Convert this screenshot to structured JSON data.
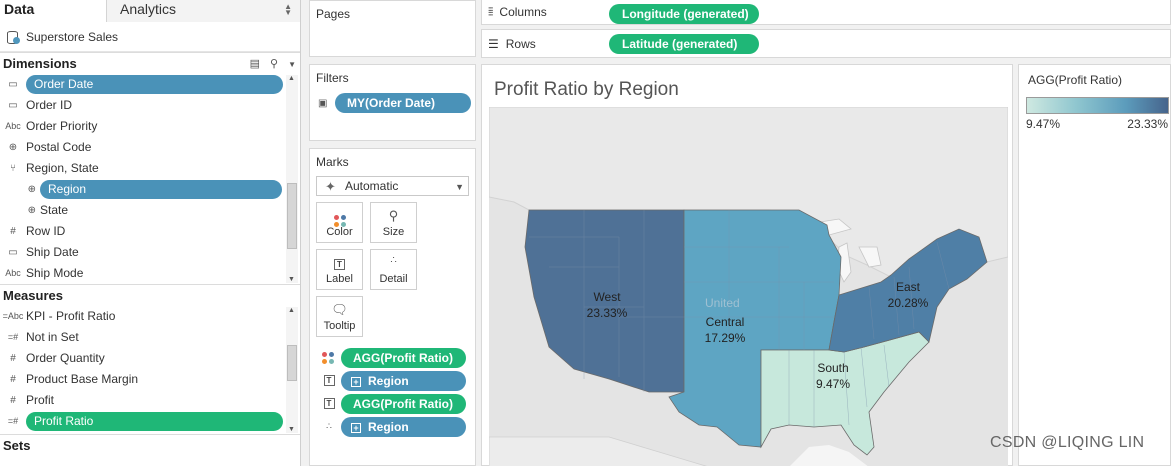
{
  "left_pane": {
    "tabs": {
      "data": "Data",
      "analytics": "Analytics"
    },
    "datasource": "Superstore Sales",
    "dimensions_header": "Dimensions",
    "dimensions": [
      {
        "label": "Order Date",
        "icon": "calendar-icon",
        "selected": true
      },
      {
        "label": "Order ID",
        "icon": "calendar-icon"
      },
      {
        "label": "Order Priority",
        "icon": "abc-icon"
      },
      {
        "label": "Postal Code",
        "icon": "globe-icon"
      },
      {
        "label": "Region, State",
        "icon": "hierarchy-icon"
      },
      {
        "label": "Region",
        "icon": "globe-icon",
        "selected": true,
        "indent": true
      },
      {
        "label": "State",
        "icon": "globe-icon",
        "indent": true
      },
      {
        "label": "Row ID",
        "icon": "hash-icon"
      },
      {
        "label": "Ship Date",
        "icon": "calendar-icon"
      },
      {
        "label": "Ship Mode",
        "icon": "abc-icon"
      }
    ],
    "measures_header": "Measures",
    "measures": [
      {
        "label": "KPI - Profit Ratio",
        "icon": "abc-calc-icon"
      },
      {
        "label": "Not in Set",
        "icon": "hash-calc-icon"
      },
      {
        "label": "Order Quantity",
        "icon": "hash-icon"
      },
      {
        "label": "Product Base Margin",
        "icon": "hash-icon"
      },
      {
        "label": "Profit",
        "icon": "hash-icon"
      },
      {
        "label": "Profit Ratio",
        "icon": "hash-calc-icon",
        "selected": true
      }
    ],
    "sets_header": "Sets"
  },
  "shelves": {
    "pages": "Pages",
    "filters": "Filters",
    "filter_pill": "MY(Order Date)",
    "columns_label": "Columns",
    "columns_pill": "Longitude (generated)",
    "rows_label": "Rows",
    "rows_pill": "Latitude (generated)"
  },
  "marks": {
    "title": "Marks",
    "type": "Automatic",
    "buttons": [
      "Color",
      "Size",
      "Label",
      "Detail",
      "Tooltip"
    ],
    "fields": [
      {
        "label": "AGG(Profit Ratio)",
        "kind": "measure",
        "role": "color"
      },
      {
        "label": "Region",
        "kind": "dimension",
        "role": "label"
      },
      {
        "label": "AGG(Profit Ratio)",
        "kind": "measure",
        "role": "label"
      },
      {
        "label": "Region",
        "kind": "dimension",
        "role": "detail"
      }
    ]
  },
  "view": {
    "title": "Profit Ratio by Region",
    "regions": [
      {
        "name": "West",
        "value": "23.33%",
        "color": "#4f7196"
      },
      {
        "name": "Central",
        "value": "17.29%",
        "color": "#5ea5c3"
      },
      {
        "name": "East",
        "value": "20.28%",
        "color": "#4f7fa6"
      },
      {
        "name": "South",
        "value": "9.47%",
        "color": "#c7e8dc"
      }
    ],
    "country_label": "United"
  },
  "legend": {
    "title": "AGG(Profit Ratio)",
    "min": "9.47%",
    "max": "23.33%"
  },
  "watermark": "CSDN @LIQING LIN",
  "colors": {
    "dimension_pill": "#4a92b8",
    "measure_pill": "#1fb777"
  }
}
